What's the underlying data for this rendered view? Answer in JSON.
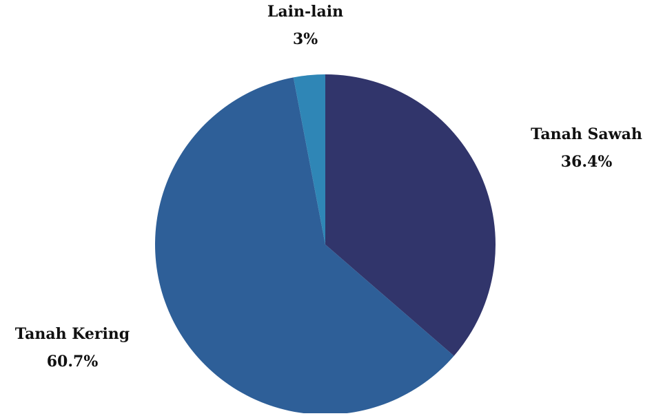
{
  "chart_data": {
    "type": "pie",
    "title": "",
    "start_angle_deg": 0,
    "direction": "clockwise",
    "slices": [
      {
        "label": "Tanah Sawah",
        "value": 36.4,
        "value_label": "36.4%",
        "color": "#31356b"
      },
      {
        "label": "Tanah Kering",
        "value": 60.7,
        "value_label": "60.7%",
        "color": "#2e5f98"
      },
      {
        "label": "Lain-lain",
        "value": 3,
        "value_label": "3%",
        "color": "#2f86b6"
      }
    ]
  }
}
